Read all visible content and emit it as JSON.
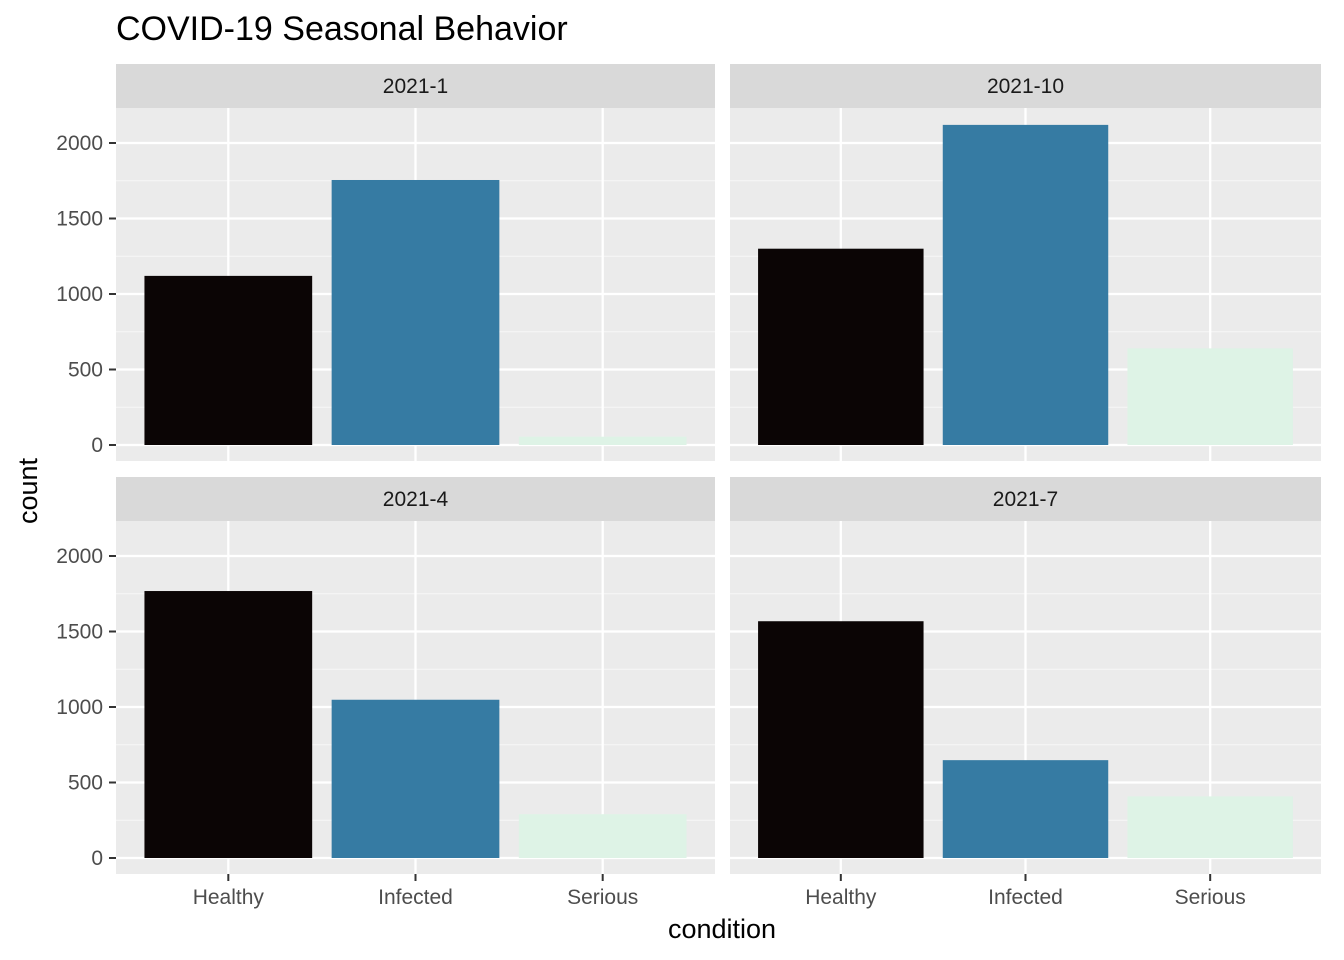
{
  "chart_data": {
    "type": "bar",
    "title": "COVID-19 Seasonal Behavior",
    "xlabel": "condition",
    "ylabel": "count",
    "categories": [
      "Healthy",
      "Infected",
      "Serious"
    ],
    "ylim": [
      -100,
      2350
    ],
    "yticks": [
      0,
      500,
      1000,
      1500,
      2000
    ],
    "colors": {
      "Healthy": "#0b0505",
      "Infected": "#367ba3",
      "Serious": "#def3e6"
    },
    "grid": true,
    "legend": "none",
    "facets": [
      {
        "label": "2021-1",
        "values": [
          1120,
          1755,
          55
        ]
      },
      {
        "label": "2021-10",
        "values": [
          1300,
          2120,
          640
        ]
      },
      {
        "label": "2021-4",
        "values": [
          1768,
          1048,
          290
        ]
      },
      {
        "label": "2021-7",
        "values": [
          1568,
          648,
          408
        ]
      }
    ]
  },
  "style": {
    "panel_background": "#ebebeb",
    "strip_background": "#d9d9d9",
    "grid_major": "#ffffff",
    "grid_minor": "#f5f5f5",
    "tick_color": "#333333"
  }
}
